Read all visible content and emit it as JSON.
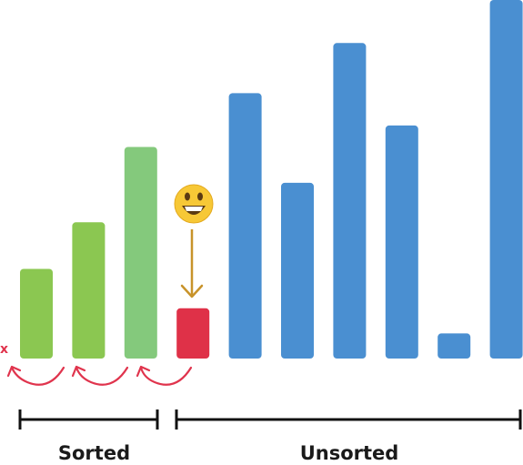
{
  "chart_data": {
    "type": "bar",
    "title": "",
    "xlabel": "",
    "ylabel": "",
    "ylim": [
      0,
      100
    ],
    "bars": [
      {
        "value": 25,
        "role": "sorted",
        "color": "#8bc751"
      },
      {
        "value": 38,
        "role": "sorted",
        "color": "#8bc751"
      },
      {
        "value": 59,
        "role": "sorted",
        "color": "#84c97c"
      },
      {
        "value": 14,
        "role": "current",
        "color": "#df3148"
      },
      {
        "value": 74,
        "role": "unsorted",
        "color": "#4a8fd1"
      },
      {
        "value": 49,
        "role": "unsorted",
        "color": "#4a8fd1"
      },
      {
        "value": 88,
        "role": "unsorted",
        "color": "#4a8fd1"
      },
      {
        "value": 65,
        "role": "unsorted",
        "color": "#4a8fd1"
      },
      {
        "value": 7,
        "role": "unsorted",
        "color": "#4a8fd1"
      },
      {
        "value": 100,
        "role": "unsorted",
        "color": "#4a8fd1"
      }
    ]
  },
  "groups": {
    "sorted_label": "Sorted",
    "unsorted_label": "Unsorted"
  },
  "annotations": {
    "cross": "x",
    "emoji_icon": "grinning-face-icon",
    "arrow_icon": "down-arrow-icon",
    "swap_arrow_color": "#e0344d",
    "down_arrow_color": "#c8932a"
  }
}
